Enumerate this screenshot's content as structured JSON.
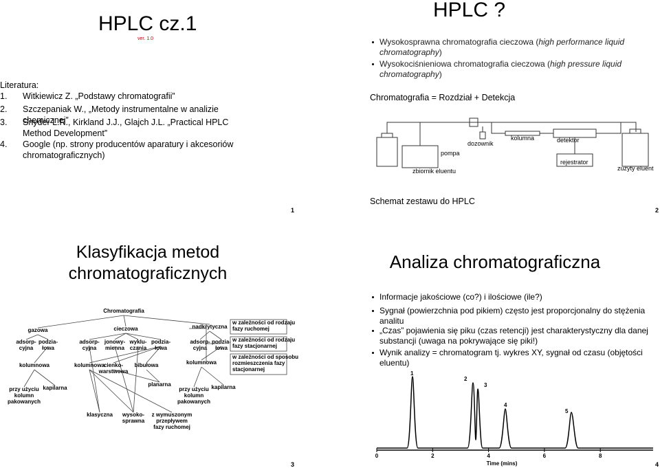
{
  "slides": [
    {
      "title": "HPLC cz.1",
      "version": "ver. 1.0",
      "literature_heading": "Literatura:",
      "references": [
        {
          "number": "1.",
          "text": "Witkiewicz Z. „Podstawy chromatografii”"
        },
        {
          "number": "2.",
          "text": "Szczepaniak W., „Metody instrumentalne w analizie chemicznej”"
        },
        {
          "number": "3.",
          "text": "Snyder L.R., Kirkland J.J., Glajch J.L. „Practical HPLC Method Development”"
        },
        {
          "number": "4.",
          "text": "Google (np. strony producentów aparatury i akcesoriów chromatograficznych)"
        }
      ],
      "page_number": "1"
    },
    {
      "title": "HPLC ?",
      "bullets": [
        {
          "text": "Wysokosprawna chromatografia cieczowa (",
          "italic": "high performance liquid chromatography",
          "end": ")"
        },
        {
          "text": "Wysokociśnieniowa chromatografia cieczowa (",
          "italic": "high pressure liquid chromatography",
          "end": ")"
        }
      ],
      "equation": "Chromatografia = Rozdział + Detekcja",
      "diagram": {
        "pump": "pompa",
        "injector": "dozownik",
        "column": "kolumna",
        "detector": "detektor",
        "recorder": "rejestrator",
        "reservoir": "zbiornik eluentu",
        "waste": "zużyty eluent"
      },
      "caption": "Schemat zestawu do HPLC",
      "page_number": "2"
    },
    {
      "title": "Klasyfikacja metod chromatograficznych",
      "tree": {
        "nodes": [
          {
            "lines": [
              "Chromatografia"
            ]
          },
          {
            "lines": [
              "gazowa"
            ]
          },
          {
            "lines": [
              "cieczowa"
            ]
          },
          {
            "lines": [
              "nadkrytyczna"
            ]
          },
          {
            "lines": [
              "adsorp-",
              "cyjna"
            ]
          },
          {
            "lines": [
              "podzia-",
              "łowa"
            ]
          },
          {
            "lines": [
              "adsorp-",
              "cyjna"
            ]
          },
          {
            "lines": [
              "jonowy-",
              "mienna"
            ]
          },
          {
            "lines": [
              "wyklu-",
              "czania"
            ]
          },
          {
            "lines": [
              "podzia-",
              "łowa"
            ]
          },
          {
            "lines": [
              "adsorp-",
              "cyjna"
            ]
          },
          {
            "lines": [
              "podzia-",
              "łowa"
            ]
          },
          {
            "lines": [
              "kolumnowa"
            ]
          },
          {
            "lines": [
              "kolumnowa"
            ]
          },
          {
            "lines": [
              "cienko-",
              "warstwowa"
            ]
          },
          {
            "lines": [
              "bibułowa"
            ]
          },
          {
            "lines": [
              "kolumnowa"
            ]
          },
          {
            "lines": [
              "planarna"
            ]
          },
          {
            "lines": [
              "przy użyciu",
              "kolumn",
              "pakowanych"
            ]
          },
          {
            "lines": [
              "kapilarna"
            ]
          },
          {
            "lines": [
              "przy użyciu",
              "kolumn",
              "pakowanych"
            ]
          },
          {
            "lines": [
              "kapilarna"
            ]
          },
          {
            "lines": [
              "klasyczna"
            ]
          },
          {
            "lines": [
              "wysoko-",
              "sprawna"
            ]
          },
          {
            "lines": [
              "z wymuszonym",
              "przepływem",
              "fazy ruchomej"
            ]
          },
          {
            "lines": [
              "w zależności od rodzaju",
              "fazy ruchomej"
            ]
          },
          {
            "lines": [
              "w zależności od rodzaju",
              "fazy stacjonarnej"
            ]
          },
          {
            "lines": [
              "w zależności od sposobu",
              "rozmieszczenia fazy",
              "stacjonarnej"
            ]
          }
        ]
      },
      "page_number": "3"
    },
    {
      "title": "Analiza chromatograficzna",
      "bullets": [
        "Informacje jakościowe (co?) i ilościowe (ile?)",
        "Sygnał (powierzchnia pod pikiem) często jest proporcjonalny do stężenia analitu",
        "„Czas” pojawienia się piku (czas retencji) jest charakterystyczny dla danej substancji (uwaga na pokrywające się piki!)",
        "Wynik analizy = chromatogram tj. wykres XY, sygnał od czasu (objętości eluentu)"
      ],
      "chromatogram": {
        "peak_labels": [
          "1",
          "2",
          "3",
          "4",
          "5"
        ],
        "x_ticks": [
          "0",
          "2",
          "4",
          "6",
          "8"
        ],
        "x_label": "Time (mins)"
      },
      "page_number": "4"
    }
  ]
}
